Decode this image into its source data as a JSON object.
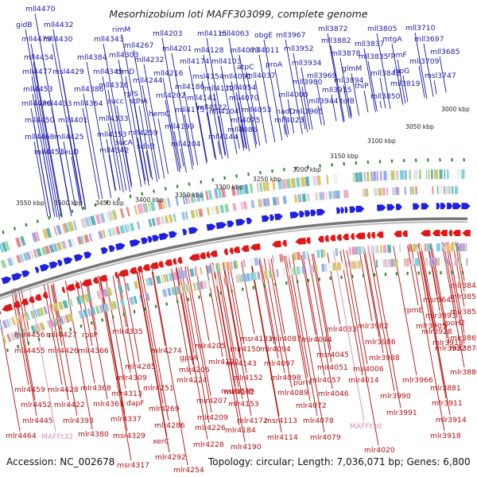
{
  "title": "Mesorhizobium loti MAFF303099, complete genome",
  "footer": {
    "accession": "Accession: NC_002678",
    "topology": "Topology: circular; Length: 7,036,071 bp; Genes: 6,800"
  },
  "colors": {
    "forward": "#1a1aa6",
    "reverse": "#b80d0d",
    "trna": "#d98ab8",
    "forward_arrow": "#2020e0",
    "reverse_arrow": "#e01818",
    "backbone": "#777777",
    "tick": "#2a8a2a"
  },
  "kbp_ticks": [
    "3000 kbp",
    "3050 kbp",
    "3100 kbp",
    "3150 kbp",
    "3200 kbp",
    "3250 kbp",
    "3300 kbp",
    "3350 kbp",
    "3400 kbp",
    "3450 kbp",
    "3500 kbp",
    "3550 kbp"
  ],
  "forward_genes": [
    "mll4470",
    "gidB",
    "mll4432",
    "mll4479",
    "mll4430",
    "mll4454",
    "mll4477",
    "msl4429",
    "mll4453",
    "mll4476",
    "mll4433",
    "mll4450",
    "mll4401",
    "mll4468",
    "mll4425",
    "mll4451",
    "leuD",
    "mll4384",
    "mll4343",
    "rimM",
    "mll4267",
    "mll4303",
    "mll4232",
    "mll4345",
    "mll4386",
    "mll4316",
    "mll4364",
    "trmD",
    "succ",
    "rplS",
    "mll4333",
    "mll4353",
    "sucA",
    "mll4342",
    "mll4259",
    "sdhB",
    "mll4203",
    "mll4201",
    "mll4174",
    "mll4216",
    "mll4244",
    "mll4186",
    "mll4202",
    "sdhA",
    "hemC",
    "mll4175",
    "mll4199",
    "mll4204",
    "mll4115",
    "mll4128",
    "mll4103",
    "msl4154",
    "mll4112",
    "mll4141",
    "mll4122",
    "mll4104",
    "mll4144",
    "mll4063",
    "mll4073",
    "mll4091",
    "atpC",
    "mll4054",
    "mll4070",
    "mll4075",
    "mll4053",
    "mll4086",
    "mll4023",
    "obgE",
    "mll4011",
    "proA",
    "mll4037",
    "mll3967",
    "mll3952",
    "mll3934",
    "mll3980",
    "mll4000",
    "nadD",
    "mll3965",
    "mll3872",
    "mll3882",
    "mll3878",
    "mll3969",
    "glmM",
    "mll3894",
    "mll3944",
    "mll3915",
    "tolB",
    "mll3805",
    "mll3837",
    "mll3835",
    "mtgA",
    "thiP",
    "mll3842",
    "mll3850",
    "mll3710",
    "rpmF",
    "mll3697",
    "ispG",
    "mll3685",
    "mll3709",
    "msl3747",
    "mll3819"
  ],
  "reverse_genes": [
    "mlr4456",
    "mlr4427",
    "rpsP",
    "mlr4335",
    "mlr4274",
    "mlr4205",
    "mlr4455",
    "mlr4426",
    "mlr4366",
    "mlr4285",
    "mlr4309",
    "gpsA",
    "mlr4206",
    "mlr4459",
    "mlr4428",
    "mlr4368",
    "mlr4313",
    "mlr4251",
    "mlr4224",
    "mlr4452",
    "mlr4422",
    "mlr4361",
    "dapF",
    "mlr4269",
    "mlr4445",
    "mlr4337",
    "mlr4286",
    "mlr4393",
    "mlr4380",
    "msr4329",
    "mlr4292",
    "xerC",
    "mlr4464",
    "msr4317",
    "mlr4254",
    "mlr4192",
    "mlr4150",
    "msr4131",
    "mlr4087",
    "mlr4094",
    "mlr4143",
    "mlr4097",
    "mlr4152",
    "mlr4132",
    "msr8648",
    "mlr4207",
    "mlr4153",
    "mlr4209",
    "mlr4172",
    "mlr4226",
    "mlr4184",
    "mlr4228",
    "mlr4190",
    "mlr4033",
    "mlr4044",
    "msr4045",
    "mlr4051",
    "mlr4098",
    "mlr4057",
    "purH",
    "mlr4089",
    "mlr4072",
    "msr4113",
    "mlr4078",
    "mlr4114",
    "mlr4079",
    "mlr4046",
    "mlr3982",
    "mlr3986",
    "mlr3988",
    "mlr4006",
    "mlr4014",
    "mlr3990",
    "mlr3991",
    "mlr4020",
    "mlr3843",
    "mlr3851",
    "rpmE",
    "msr8645",
    "mlr3852",
    "mlr3893",
    "mlr3905",
    "rpoH2",
    "mlr3913",
    "mlr3928",
    "mlr3869",
    "mlr3874",
    "mlr3932",
    "mlr3880",
    "mlr3966",
    "mlr3881",
    "mlr3911",
    "mlr3914",
    "mlr3918",
    "mlr3919"
  ],
  "trna_genes": [
    "MAFFt32",
    "MAFFt30"
  ]
}
